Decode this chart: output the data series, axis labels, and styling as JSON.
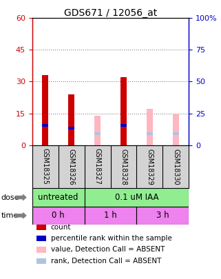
{
  "title": "GDS671 / 12056_at",
  "samples": [
    "GSM18325",
    "GSM18326",
    "GSM18327",
    "GSM18328",
    "GSM18329",
    "GSM18330"
  ],
  "count_values": [
    33,
    24,
    0,
    32,
    0,
    0
  ],
  "percentile_rank": [
    15.5,
    13.5,
    0,
    15.5,
    0,
    0
  ],
  "absent_value": [
    0,
    0,
    14,
    0,
    17,
    15
  ],
  "absent_rank": [
    0,
    0,
    9,
    0,
    9,
    9
  ],
  "ylim_left": [
    0,
    60
  ],
  "ylim_right": [
    0,
    100
  ],
  "yticks_left": [
    0,
    15,
    30,
    45,
    60
  ],
  "yticks_right": [
    0,
    25,
    50,
    75,
    100
  ],
  "yticklabels_left": [
    "0",
    "15",
    "30",
    "45",
    "60"
  ],
  "yticklabels_right": [
    "0",
    "25",
    "50",
    "75",
    "100%"
  ],
  "color_count": "#cc0000",
  "color_rank": "#0000cc",
  "color_absent_value": "#ffb6c1",
  "color_absent_rank": "#b0c4de",
  "dose_labels": [
    {
      "text": "untreated",
      "span": [
        0,
        2
      ],
      "color": "#90ee90"
    },
    {
      "text": "0.1 uM IAA",
      "span": [
        2,
        6
      ],
      "color": "#90ee90"
    }
  ],
  "time_labels": [
    {
      "text": "0 h",
      "span": [
        0,
        2
      ],
      "color": "#ee82ee"
    },
    {
      "text": "1 h",
      "span": [
        2,
        4
      ],
      "color": "#ee82ee"
    },
    {
      "text": "3 h",
      "span": [
        4,
        6
      ],
      "color": "#ee82ee"
    }
  ],
  "legend_items": [
    {
      "label": "count",
      "color": "#cc0000"
    },
    {
      "label": "percentile rank within the sample",
      "color": "#0000cc"
    },
    {
      "label": "value, Detection Call = ABSENT",
      "color": "#ffb6c1"
    },
    {
      "label": "rank, Detection Call = ABSENT",
      "color": "#b0c4de"
    }
  ],
  "background_color": "#ffffff"
}
